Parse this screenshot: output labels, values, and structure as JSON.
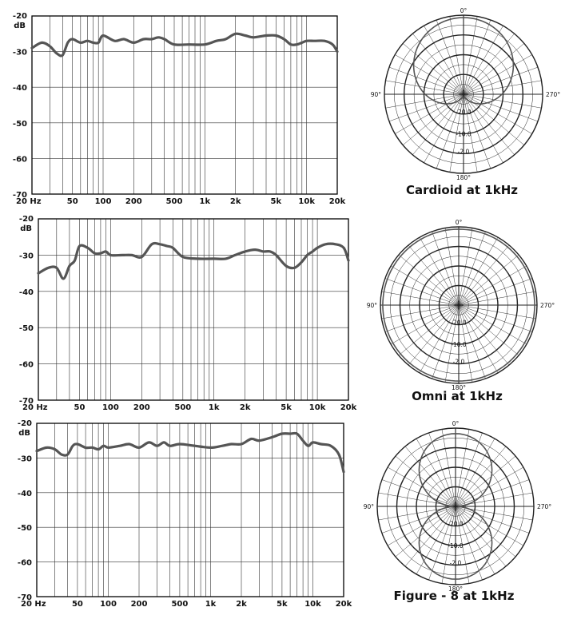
{
  "chart_data": [
    {
      "type": "line",
      "ylabel": "dB",
      "y_ticks": [
        "-20",
        "-30",
        "-40",
        "-50",
        "-60",
        "-70"
      ],
      "x_ticks": [
        {
          "label": "20 Hz",
          "v": 20
        },
        {
          "label": "50",
          "v": 50
        },
        {
          "label": "100",
          "v": 100
        },
        {
          "label": "200",
          "v": 200
        },
        {
          "label": "500",
          "v": 500
        },
        {
          "label": "1k",
          "v": 1000
        },
        {
          "label": "2k",
          "v": 2000
        },
        {
          "label": "5k",
          "v": 5000
        },
        {
          "label": "10k",
          "v": 10000
        },
        {
          "label": "20k",
          "v": 20000
        }
      ],
      "xscale": "log",
      "xlim": [
        20,
        20000
      ],
      "ylim": [
        -70,
        -20
      ],
      "grid": true,
      "series": [
        {
          "x": [
            20,
            25,
            30,
            35,
            40,
            45,
            50,
            60,
            70,
            80,
            90,
            100,
            130,
            160,
            200,
            250,
            300,
            350,
            400,
            500,
            700,
            1000,
            1300,
            1600,
            2000,
            2500,
            3000,
            4000,
            5000,
            6000,
            7000,
            8000,
            9000,
            10000,
            12000,
            15000,
            18000,
            20000
          ],
          "y": [
            -29,
            -27.5,
            -28.5,
            -30.5,
            -31,
            -27.5,
            -26.5,
            -27.5,
            -27,
            -27.5,
            -27.5,
            -25.5,
            -27,
            -26.5,
            -27.5,
            -26.5,
            -26.5,
            -26,
            -26.5,
            -28,
            -28,
            -28,
            -27,
            -26.5,
            -25,
            -25.5,
            -26,
            -25.5,
            -25.5,
            -26.5,
            -28,
            -28,
            -27.5,
            -27,
            -27,
            -27,
            -28,
            -30
          ]
        }
      ],
      "caption": "Cardioid at 1kHz",
      "polar_labels": {
        "top": "0°",
        "left": "90°",
        "right": "270°",
        "bottom": "180°",
        "rings": [
          "-20.0",
          "-10.0",
          "-2.0"
        ]
      },
      "pattern": "cardioid"
    },
    {
      "type": "line",
      "ylabel": "dB",
      "y_ticks": [
        "-20",
        "-30",
        "-40",
        "-50",
        "-60",
        "-70"
      ],
      "x_ticks": [
        {
          "label": "20 Hz",
          "v": 20
        },
        {
          "label": "50",
          "v": 50
        },
        {
          "label": "100",
          "v": 100
        },
        {
          "label": "200",
          "v": 200
        },
        {
          "label": "500",
          "v": 500
        },
        {
          "label": "1k",
          "v": 1000
        },
        {
          "label": "2k",
          "v": 2000
        },
        {
          "label": "5k",
          "v": 5000
        },
        {
          "label": "10k",
          "v": 10000
        },
        {
          "label": "20k",
          "v": 20000
        }
      ],
      "xscale": "log",
      "xlim": [
        20,
        20000
      ],
      "ylim": [
        -70,
        -20
      ],
      "grid": true,
      "series": [
        {
          "x": [
            20,
            25,
            30,
            35,
            40,
            45,
            50,
            60,
            70,
            80,
            90,
            100,
            130,
            160,
            200,
            250,
            300,
            350,
            400,
            500,
            700,
            1000,
            1300,
            1600,
            2000,
            2500,
            3000,
            3500,
            4000,
            5000,
            6000,
            7000,
            8000,
            9000,
            10000,
            12000,
            15000,
            18000,
            20000
          ],
          "y": [
            -35,
            -33.5,
            -33.5,
            -36.5,
            -33,
            -31.5,
            -27.5,
            -28,
            -29.5,
            -29.5,
            -29,
            -30,
            -30,
            -30,
            -30.5,
            -27,
            -27,
            -27.5,
            -28,
            -30.5,
            -31,
            -31,
            -31,
            -30,
            -29,
            -28.5,
            -29,
            -29,
            -30,
            -33,
            -33.5,
            -32,
            -30,
            -29,
            -28,
            -27,
            -27,
            -28,
            -31.5
          ]
        }
      ],
      "caption": "Omni at 1kHz",
      "polar_labels": {
        "top": "0°",
        "left": "90°",
        "right": "270°",
        "bottom": "180°",
        "rings": [
          "-20.0",
          "-10.0",
          "-2.0"
        ]
      },
      "pattern": "omni"
    },
    {
      "type": "line",
      "ylabel": "dB",
      "y_ticks": [
        "-20",
        "-30",
        "-40",
        "-50",
        "-60",
        "-70"
      ],
      "x_ticks": [
        {
          "label": "20 Hz",
          "v": 20
        },
        {
          "label": "50",
          "v": 50
        },
        {
          "label": "100",
          "v": 100
        },
        {
          "label": "200",
          "v": 200
        },
        {
          "label": "500",
          "v": 500
        },
        {
          "label": "1k",
          "v": 1000
        },
        {
          "label": "2k",
          "v": 2000
        },
        {
          "label": "5k",
          "v": 5000
        },
        {
          "label": "10k",
          "v": 10000
        },
        {
          "label": "20k",
          "v": 20000
        }
      ],
      "xscale": "log",
      "xlim": [
        20,
        20000
      ],
      "ylim": [
        -70,
        -20
      ],
      "grid": true,
      "series": [
        {
          "x": [
            20,
            25,
            30,
            35,
            40,
            45,
            50,
            60,
            70,
            80,
            90,
            100,
            130,
            160,
            200,
            250,
            300,
            350,
            400,
            500,
            700,
            1000,
            1300,
            1600,
            2000,
            2500,
            3000,
            4000,
            5000,
            6000,
            7000,
            8000,
            9000,
            10000,
            12000,
            15000,
            18000,
            20000
          ],
          "y": [
            -28,
            -27,
            -27.5,
            -29,
            -29,
            -26.5,
            -26,
            -27,
            -27,
            -27.5,
            -26.5,
            -27,
            -26.5,
            -26,
            -27,
            -25.5,
            -26.5,
            -25.5,
            -26.5,
            -26,
            -26.5,
            -27,
            -26.5,
            -26,
            -26,
            -24.5,
            -25,
            -24,
            -23,
            -23,
            -23,
            -25,
            -26.5,
            -25.5,
            -26,
            -26.5,
            -29,
            -34
          ]
        }
      ],
      "caption": "Figure - 8 at 1kHz",
      "polar_labels": {
        "top": "0°",
        "left": "90°",
        "right": "270°",
        "bottom": "180°",
        "rings": [
          "-20.0",
          "-10.0",
          "-2.0"
        ]
      },
      "pattern": "figure8"
    }
  ],
  "colors": {
    "curve": "#555555",
    "grid": "#333333",
    "frame": "#000000"
  }
}
